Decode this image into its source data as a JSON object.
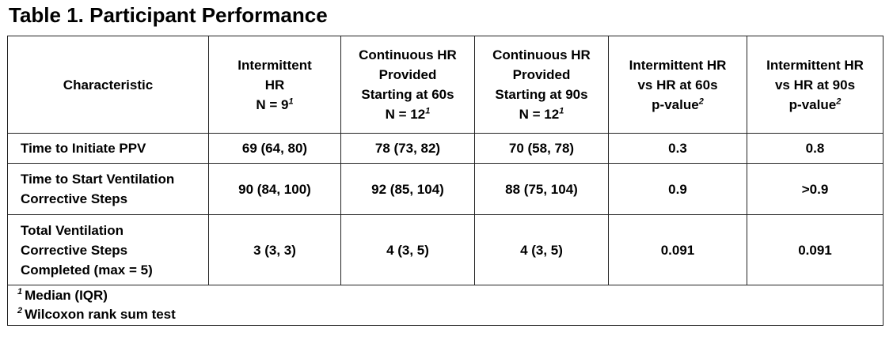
{
  "title": "Table 1. Participant Performance",
  "headers": [
    {
      "lines": [
        "Characteristic"
      ],
      "sup": ""
    },
    {
      "lines": [
        "Intermittent",
        "HR",
        "N = 9"
      ],
      "sup": "1"
    },
    {
      "lines": [
        "Continuous HR",
        "Provided",
        "Starting at 60s",
        "N = 12"
      ],
      "sup": "1"
    },
    {
      "lines": [
        "Continuous HR",
        "Provided",
        "Starting at 90s",
        "N = 12"
      ],
      "sup": "1"
    },
    {
      "lines": [
        "Intermittent HR",
        "vs HR at 60s",
        "p-value"
      ],
      "sup": "2"
    },
    {
      "lines": [
        "Intermittent HR",
        "vs HR at 90s",
        "p-value"
      ],
      "sup": "2"
    }
  ],
  "rows": [
    {
      "characteristic": [
        "Time to Initiate PPV"
      ],
      "values": [
        "69 (64, 80)",
        "78 (73, 82)",
        "70 (58, 78)",
        "0.3",
        "0.8"
      ]
    },
    {
      "characteristic": [
        "Time to Start Ventilation",
        "Corrective Steps"
      ],
      "values": [
        "90 (84, 100)",
        "92 (85, 104)",
        "88 (75, 104)",
        "0.9",
        ">0.9"
      ]
    },
    {
      "characteristic": [
        "Total Ventilation",
        "Corrective Steps",
        "Completed (max = 5)"
      ],
      "values": [
        "3 (3, 3)",
        "4 (3, 5)",
        "4 (3, 5)",
        "0.091",
        "0.091"
      ]
    }
  ],
  "footnotes": [
    {
      "mark": "1",
      "text": "Median (IQR)"
    },
    {
      "mark": "2",
      "text": "Wilcoxon rank sum test"
    }
  ]
}
